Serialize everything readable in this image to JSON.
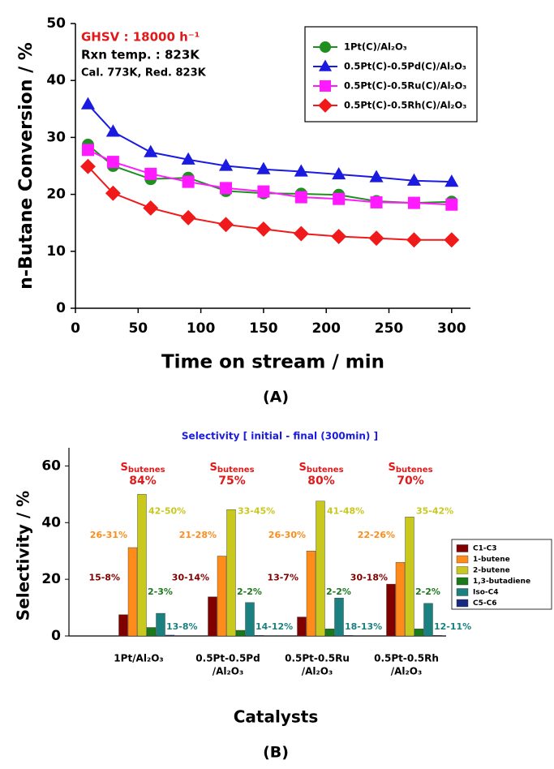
{
  "chart_data": [
    {
      "type": "line",
      "x_label": "Time on stream / min",
      "y_label": "n-Butane Conversion / %",
      "caption": "(A)",
      "annotations": [
        "GHSV : 18000 h⁻¹",
        "Rxn temp. : 823K",
        "Cal. 773K,  Red. 823K"
      ],
      "x": [
        10,
        30,
        60,
        90,
        120,
        150,
        180,
        210,
        240,
        270,
        300
      ],
      "xlim": [
        0,
        315
      ],
      "xticks": [
        0,
        50,
        100,
        150,
        200,
        250,
        300
      ],
      "ylim": [
        0,
        50
      ],
      "yticks": [
        0,
        10,
        20,
        30,
        40,
        50
      ],
      "series": [
        {
          "name": "1Pt(C)/Al₂O₃",
          "color": "#1f8f1f",
          "marker": "circle",
          "values": [
            28.7,
            25.0,
            22.7,
            22.9,
            20.6,
            20.2,
            20.1,
            19.9,
            18.8,
            18.5,
            18.7
          ]
        },
        {
          "name": "0.5Pt(C)-0.5Pd(C)/Al₂O₃",
          "color": "#1a1ae0",
          "marker": "triangle",
          "values": [
            35.8,
            31.0,
            27.4,
            26.1,
            25.0,
            24.4,
            24.0,
            23.5,
            23.0,
            22.4,
            22.2
          ]
        },
        {
          "name": "0.5Pt(C)-0.5Ru(C)/Al₂O₃",
          "color": "#ff1aff",
          "marker": "square",
          "values": [
            27.8,
            25.7,
            23.6,
            22.2,
            21.1,
            20.5,
            19.5,
            19.2,
            18.6,
            18.5,
            18.2
          ]
        },
        {
          "name": "0.5Pt(C)-0.5Rh(C)/Al₂O₃",
          "color": "#f01a1a",
          "marker": "diamond",
          "values": [
            24.9,
            20.2,
            17.6,
            15.9,
            14.7,
            13.9,
            13.1,
            12.6,
            12.3,
            12.0,
            12.0
          ]
        }
      ]
    },
    {
      "type": "bar",
      "subtitle": "Selectivity [ initial - final (300min) ]",
      "x_label": "Catalysts",
      "y_label": "Selectivity / %",
      "caption": "(B)",
      "categories": [
        [
          "1Pt/Al₂O₃"
        ],
        [
          "0.5Pt-0.5Pd",
          "/Al₂O₃"
        ],
        [
          "0.5Pt-0.5Ru",
          "/Al₂O₃"
        ],
        [
          "0.5Pt-0.5Rh",
          "/Al₂O₃"
        ]
      ],
      "selectivity_label": {
        "main": "S",
        "sub": "butenes"
      },
      "selectivity_values": [
        "84%",
        "75%",
        "80%",
        "70%"
      ],
      "ylim": [
        0,
        75
      ],
      "yticks": [
        0,
        20,
        40,
        60
      ],
      "series": [
        {
          "name": "C1-C3",
          "color": "#800000",
          "values": [
            7.5,
            13.8,
            6.7,
            18.3
          ],
          "annotations": [
            "15-8%",
            "30-14%",
            "13-7%",
            "30-18%"
          ]
        },
        {
          "name": "1-butene",
          "color": "#ff8c1a",
          "values": [
            31.2,
            28.2,
            30.0,
            26.0
          ],
          "annotations": [
            "26-31%",
            "21-28%",
            "26-30%",
            "22-26%"
          ]
        },
        {
          "name": "2-butene",
          "color": "#c8c81e",
          "values": [
            50.0,
            44.6,
            47.6,
            42.0
          ],
          "annotations": [
            "42-50%",
            "33-45%",
            "41-48%",
            "35-42%"
          ]
        },
        {
          "name": "1,3-butadiene",
          "color": "#1a7a1a",
          "values": [
            3.0,
            2.0,
            2.5,
            2.5
          ],
          "annotations": [
            "2-3%",
            "2-2%",
            "2-2%",
            "2-2%"
          ]
        },
        {
          "name": "Iso-C4",
          "color": "#1a8080",
          "values": [
            8.0,
            11.8,
            13.4,
            11.5
          ],
          "annotations": [
            "13-8%",
            "14-12%",
            "18-13%",
            "12-11%"
          ]
        },
        {
          "name": "C5-C6",
          "color": "#1a2a80",
          "values": [
            0.3,
            0.2,
            0.2,
            0.2
          ]
        }
      ]
    }
  ]
}
